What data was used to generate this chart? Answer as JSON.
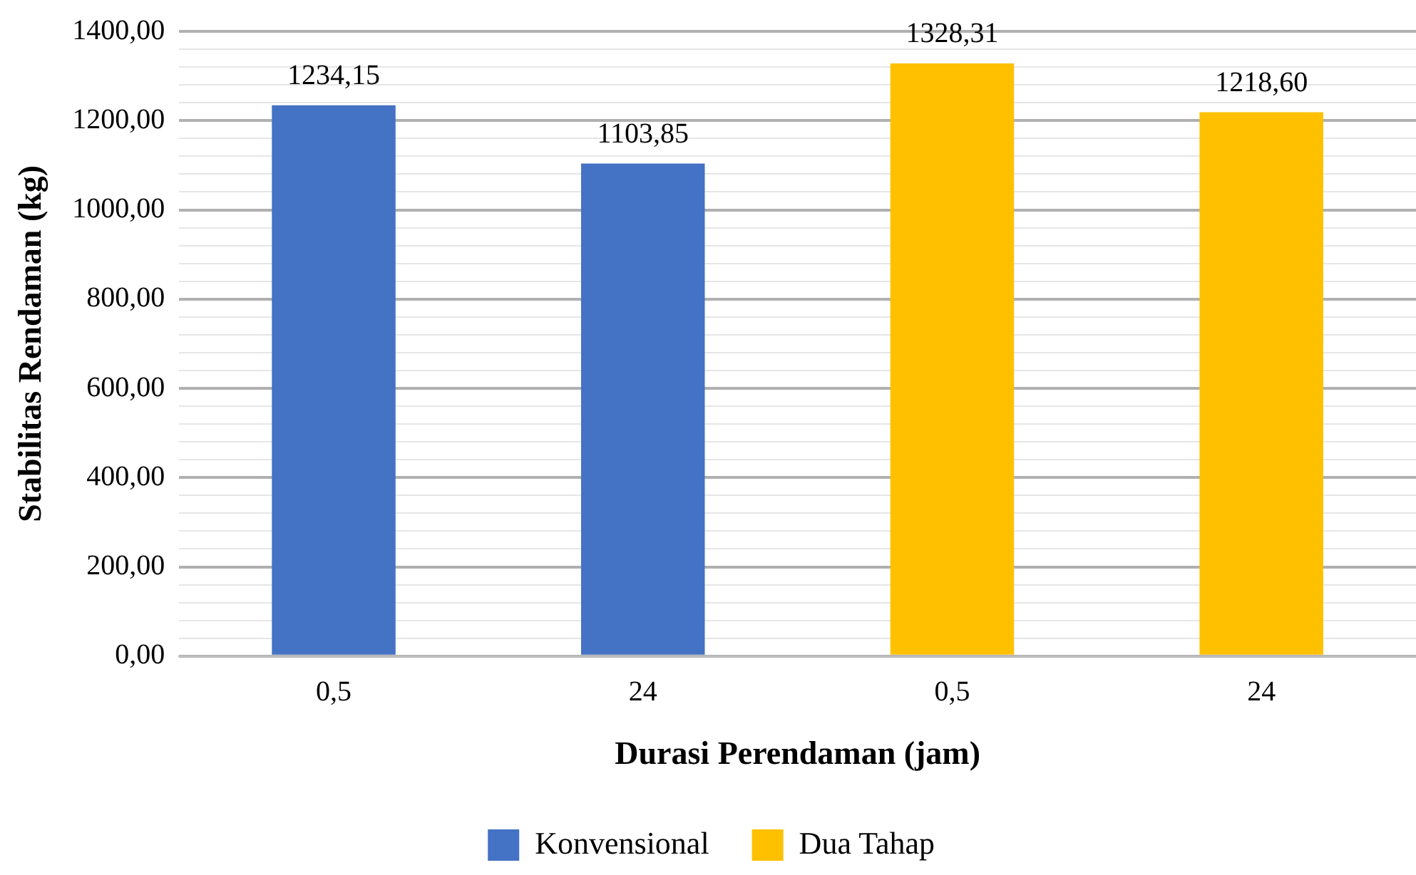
{
  "chart_data": {
    "type": "bar",
    "xlabel": "Durasi Perendaman (jam)",
    "ylabel": "Stabilitas Rendaman (kg)",
    "categories": [
      "0,5",
      "24",
      "0,5",
      "24"
    ],
    "series": [
      {
        "name": "Konvensional",
        "color": "#4472c4",
        "values": [
          1234.15,
          1103.85,
          null,
          null
        ],
        "value_labels": [
          "1234,15",
          "1103,85",
          null,
          null
        ]
      },
      {
        "name": "Dua Tahap",
        "color": "#ffc000",
        "values": [
          null,
          null,
          1328.31,
          1218.6
        ],
        "value_labels": [
          null,
          null,
          "1328,31",
          "1218,60"
        ]
      }
    ],
    "ylim": [
      0,
      1400
    ],
    "yticks": [
      {
        "value": 0,
        "label": "0,00"
      },
      {
        "value": 40,
        "label": null
      },
      {
        "value": 80,
        "label": null
      },
      {
        "value": 120,
        "label": null
      },
      {
        "value": 160,
        "label": null
      },
      {
        "value": 200,
        "label": "200,00"
      },
      {
        "value": 240,
        "label": null
      },
      {
        "value": 280,
        "label": null
      },
      {
        "value": 320,
        "label": null
      },
      {
        "value": 360,
        "label": null
      },
      {
        "value": 400,
        "label": "400,00"
      },
      {
        "value": 440,
        "label": null
      },
      {
        "value": 480,
        "label": null
      },
      {
        "value": 520,
        "label": null
      },
      {
        "value": 560,
        "label": null
      },
      {
        "value": 600,
        "label": "600,00"
      },
      {
        "value": 640,
        "label": null
      },
      {
        "value": 680,
        "label": null
      },
      {
        "value": 720,
        "label": null
      },
      {
        "value": 760,
        "label": null
      },
      {
        "value": 800,
        "label": "800,00"
      },
      {
        "value": 840,
        "label": null
      },
      {
        "value": 880,
        "label": null
      },
      {
        "value": 920,
        "label": null
      },
      {
        "value": 960,
        "label": null
      },
      {
        "value": 1000,
        "label": "1000,00"
      },
      {
        "value": 1040,
        "label": null
      },
      {
        "value": 1080,
        "label": null
      },
      {
        "value": 1120,
        "label": null
      },
      {
        "value": 1160,
        "label": null
      },
      {
        "value": 1200,
        "label": "1200,00"
      },
      {
        "value": 1240,
        "label": null
      },
      {
        "value": 1280,
        "label": null
      },
      {
        "value": 1320,
        "label": null
      },
      {
        "value": 1360,
        "label": null
      },
      {
        "value": 1400,
        "label": "1400,00"
      }
    ],
    "grid": "y",
    "legend": "bottom"
  }
}
